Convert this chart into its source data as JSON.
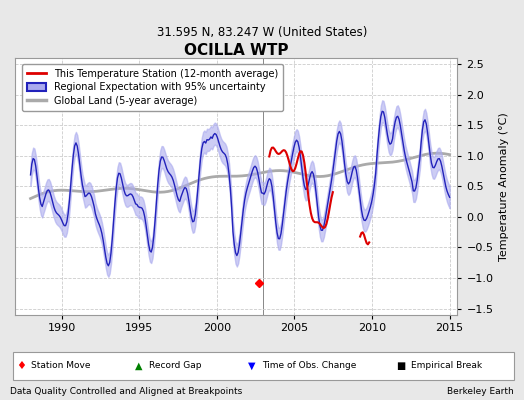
{
  "title": "OCILLA WTP",
  "subtitle": "31.595 N, 83.247 W (United States)",
  "xlabel_left": "Data Quality Controlled and Aligned at Breakpoints",
  "xlabel_right": "Berkeley Earth",
  "ylabel": "Temperature Anomaly (°C)",
  "xlim": [
    1987.0,
    2015.5
  ],
  "ylim": [
    -1.6,
    2.6
  ],
  "yticks": [
    -1.5,
    -1.0,
    -0.5,
    0.0,
    0.5,
    1.0,
    1.5,
    2.0,
    2.5
  ],
  "xticks": [
    1990,
    1995,
    2000,
    2005,
    2010,
    2015
  ],
  "plot_bg_color": "#ffffff",
  "fig_bg_color": "#e8e8e8",
  "grid_color": "#cccccc",
  "station_marker_year": 2002.7,
  "station_marker_val": -1.08,
  "regional_line_color": "#2222bb",
  "regional_fill_color": "#aaaaee",
  "global_land_color": "#aaaaaa",
  "station_line_color": "#dd0000",
  "vline_color": "#888888"
}
